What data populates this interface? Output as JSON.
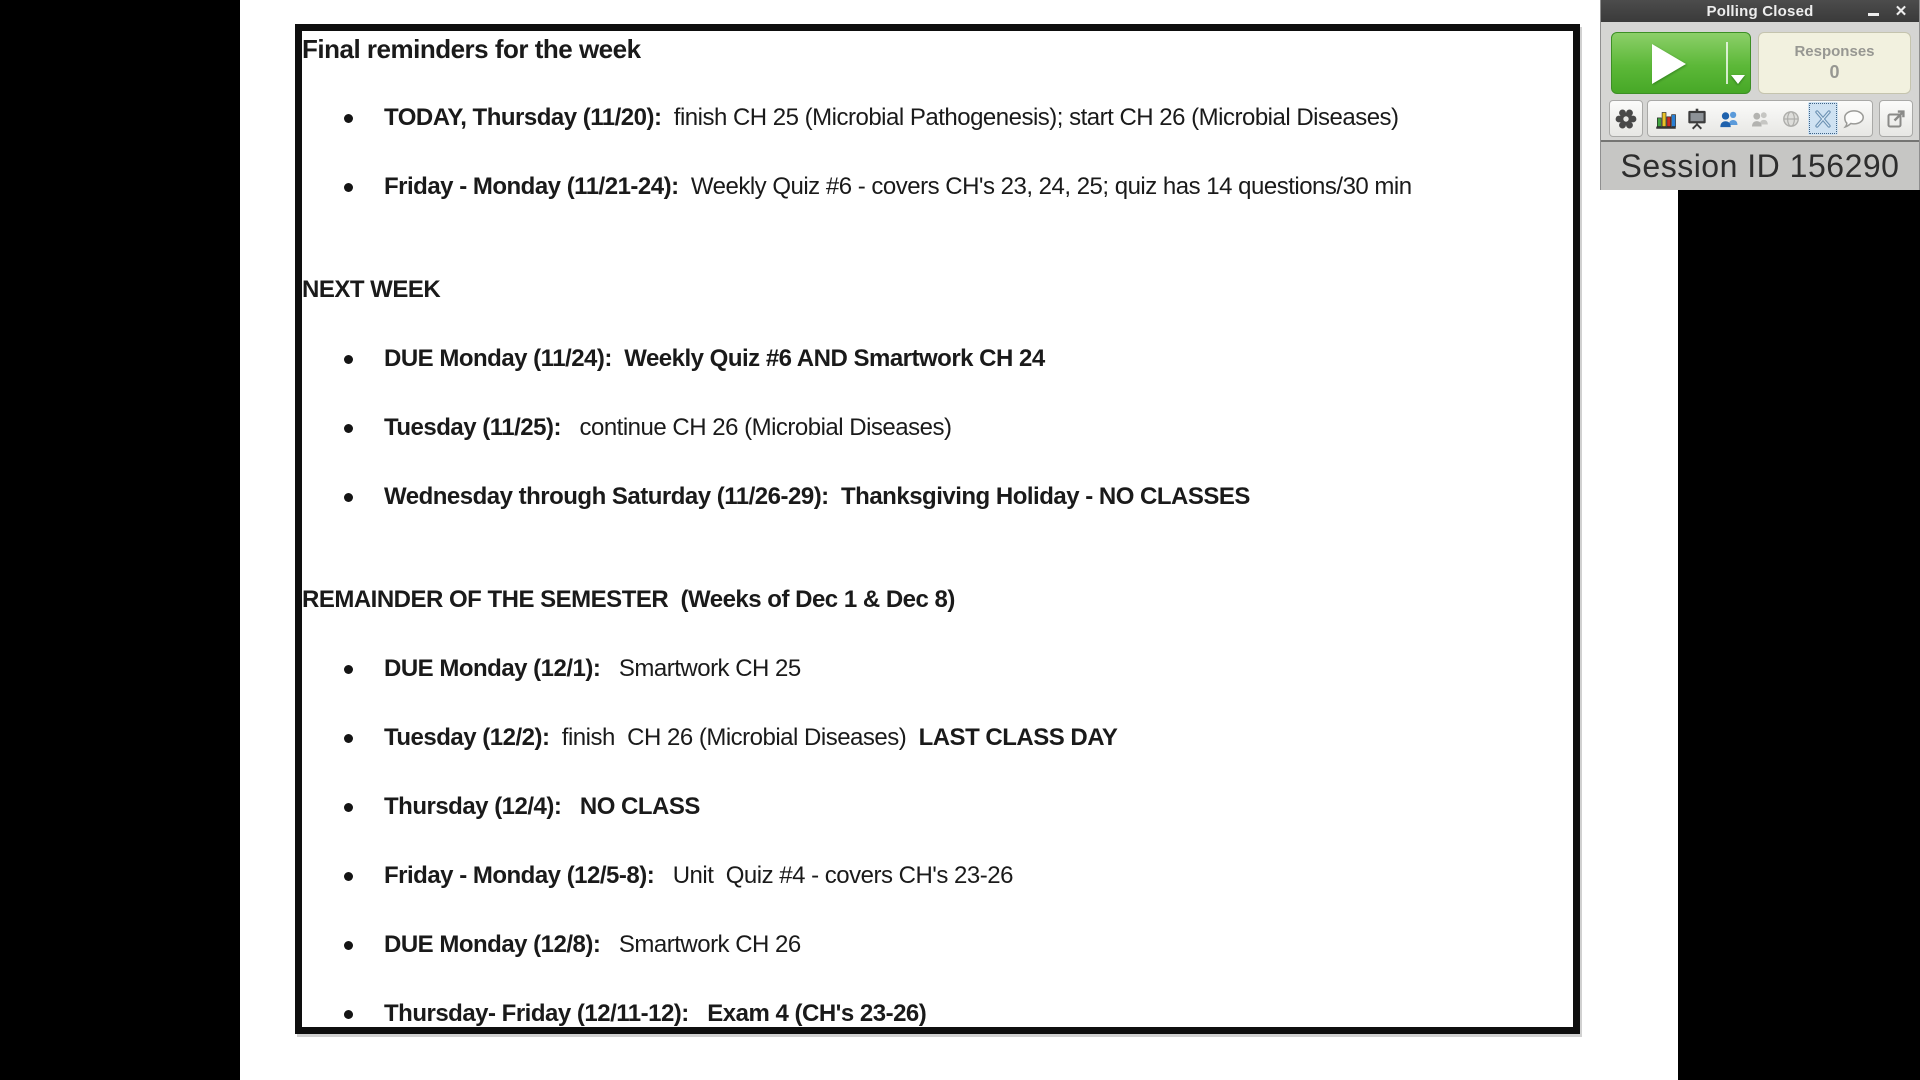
{
  "slide": {
    "title": "Final reminders for the week",
    "lines": [
      {
        "type": "bullet",
        "segments": [
          {
            "text": "TODAY, Thursday (11/20):  ",
            "bold": true
          },
          {
            "text": "finish CH 25 (Microbial Pathogenesis); start CH 26 (Microbial Diseases)",
            "bold": false
          }
        ]
      },
      {
        "type": "bullet",
        "segments": [
          {
            "text": "Friday - Monday (11/21-24):  ",
            "bold": true
          },
          {
            "text": "Weekly Quiz #6 - covers CH's 23, 24, 25; quiz has 14 questions/30 min",
            "bold": false
          }
        ]
      },
      {
        "type": "heading",
        "segments": [
          {
            "text": "NEXT WEEK",
            "bold": true
          }
        ]
      },
      {
        "type": "bullet",
        "segments": [
          {
            "text": "DUE Monday (11/24):  Weekly Quiz #6 AND Smartwork CH 24",
            "bold": true
          }
        ]
      },
      {
        "type": "bullet",
        "segments": [
          {
            "text": "Tuesday (11/25):   ",
            "bold": true
          },
          {
            "text": "continue CH 26 (Microbial Diseases)",
            "bold": false
          }
        ]
      },
      {
        "type": "bullet",
        "segments": [
          {
            "text": "Wednesday through Saturday (11/26-29):  Thanksgiving Holiday - NO CLASSES",
            "bold": true
          }
        ]
      },
      {
        "type": "heading",
        "segments": [
          {
            "text": "REMAINDER OF THE SEMESTER  (Weeks of Dec 1 & Dec 8)",
            "bold": true
          }
        ]
      },
      {
        "type": "bullet",
        "segments": [
          {
            "text": "DUE Monday (12/1):   ",
            "bold": true
          },
          {
            "text": "Smartwork CH 25",
            "bold": false
          }
        ]
      },
      {
        "type": "bullet",
        "segments": [
          {
            "text": "Tuesday (12/2):  ",
            "bold": true
          },
          {
            "text": "finish  CH 26 (Microbial Diseases)  ",
            "bold": false
          },
          {
            "text": "LAST CLASS DAY",
            "bold": true
          }
        ]
      },
      {
        "type": "bullet",
        "segments": [
          {
            "text": "Thursday (12/4):   NO CLASS",
            "bold": true
          }
        ]
      },
      {
        "type": "bullet",
        "segments": [
          {
            "text": "Friday - Monday (12/5-8):   ",
            "bold": true
          },
          {
            "text": "Unit  Quiz #4 - covers CH's 23-26",
            "bold": false
          }
        ]
      },
      {
        "type": "bullet",
        "segments": [
          {
            "text": "DUE Monday (12/8):   ",
            "bold": true
          },
          {
            "text": "Smartwork CH 26",
            "bold": false
          }
        ]
      },
      {
        "type": "bullet",
        "segments": [
          {
            "text": "Thursday- Friday (12/11-12):   Exam 4 (CH's 23-26)",
            "bold": true
          }
        ]
      }
    ]
  },
  "widget": {
    "window_title": "Polling Closed",
    "close_glyph": "✕",
    "responses_label": "Responses",
    "responses_count": "0",
    "session_id": "Session ID 156290",
    "toolbar_icons": [
      "settings-gear",
      "results-bar-chart",
      "presentation-screen",
      "participants",
      "participants-disabled",
      "globe-disabled",
      "selected-tool",
      "messaging-bubble",
      "open-external"
    ],
    "colors": {
      "play_green": "#5cb838",
      "responses_cream": "#f2f1df",
      "titlebar_gray": "#3f3f3f",
      "body_gray": "#d5d5d3",
      "session_gray": "#c6c6c4"
    }
  }
}
